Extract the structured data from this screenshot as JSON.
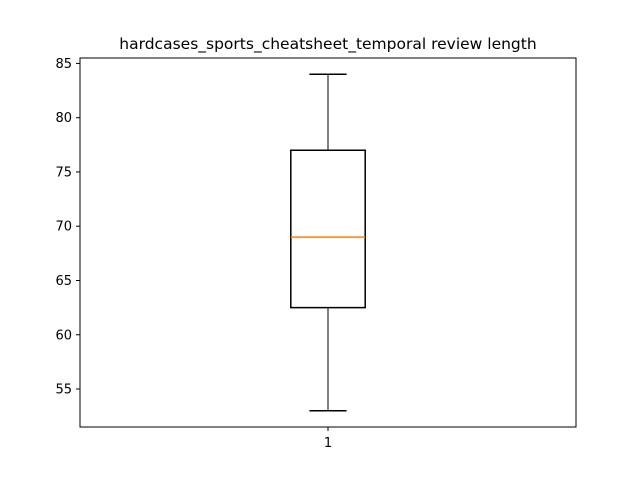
{
  "chart_data": {
    "type": "box",
    "title": "hardcases_sports_cheatsheet_temporal review length",
    "xlabel": "",
    "ylabel": "",
    "categories": [
      "1"
    ],
    "ylim": [
      51.5,
      85.5
    ],
    "yticks": [
      55,
      60,
      65,
      70,
      75,
      80,
      85
    ],
    "grid": false,
    "boxes": [
      {
        "category": "1",
        "whisker_low": 53,
        "q1": 62.5,
        "median": 69,
        "q3": 77,
        "whisker_high": 84
      }
    ],
    "colors": {
      "box": "#000000",
      "median": "#ff7f0e"
    }
  }
}
